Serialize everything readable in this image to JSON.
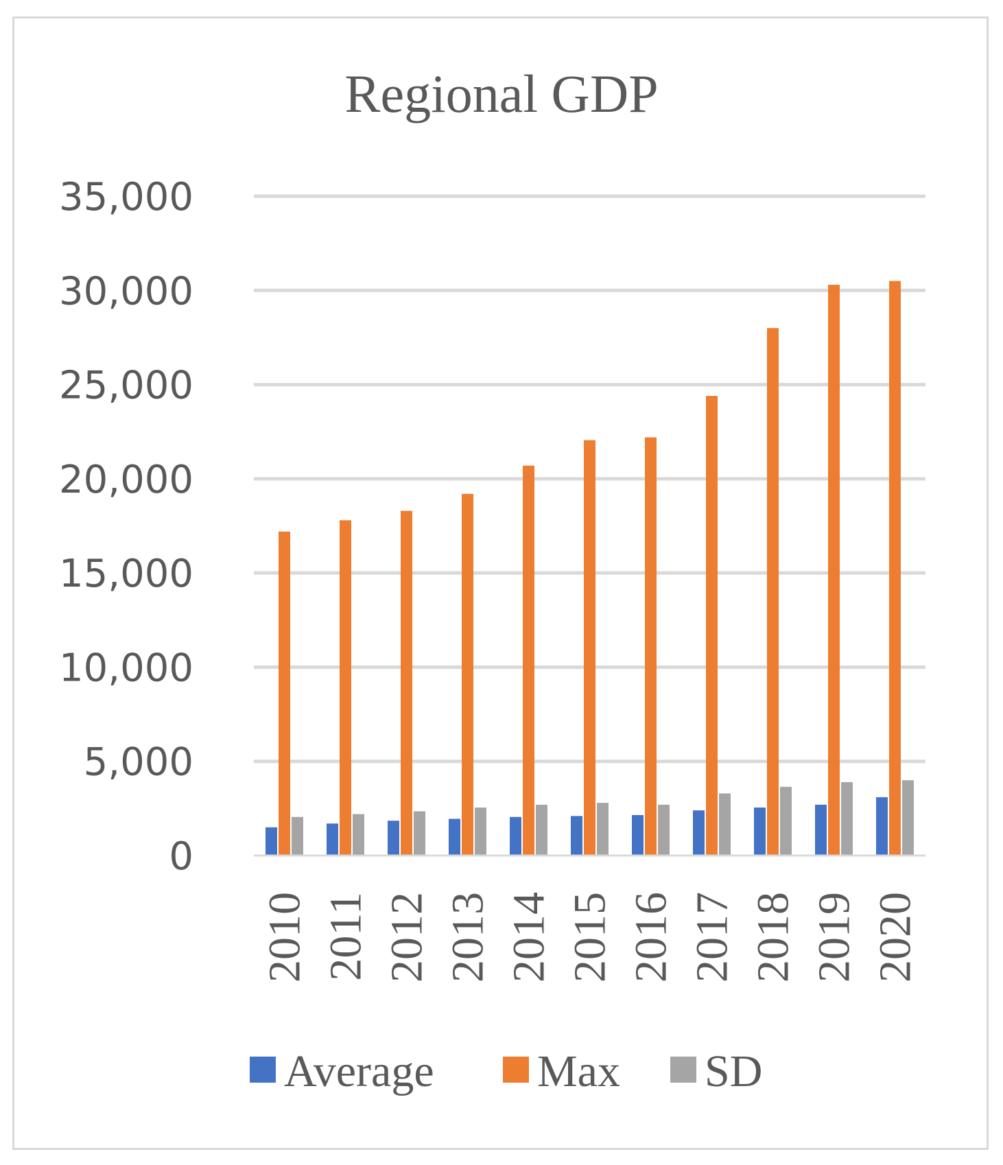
{
  "chart_data": {
    "type": "bar",
    "title": "Regional GDP",
    "xlabel": "",
    "ylabel": "",
    "ylim": [
      0,
      35000
    ],
    "yticks": [
      0,
      5000,
      10000,
      15000,
      20000,
      25000,
      30000,
      35000
    ],
    "ytick_labels": [
      "0",
      "5,000",
      "10,000",
      "15,000",
      "20,000",
      "25,000",
      "30,000",
      "35,000"
    ],
    "grid": true,
    "legend_position": "bottom",
    "categories": [
      "2010",
      "2011",
      "2012",
      "2013",
      "2014",
      "2015",
      "2016",
      "2017",
      "2018",
      "2019",
      "2020"
    ],
    "series": [
      {
        "name": "Average",
        "color": "#4472c4",
        "values": [
          1500,
          1700,
          1850,
          1950,
          2050,
          2100,
          2150,
          2400,
          2550,
          2700,
          3100
        ]
      },
      {
        "name": "Max",
        "color": "#ed7d31",
        "values": [
          17200,
          17800,
          18300,
          19200,
          20700,
          22050,
          22200,
          24400,
          28000,
          30300,
          30500
        ]
      },
      {
        "name": "SD",
        "color": "#a5a5a5",
        "values": [
          2050,
          2200,
          2350,
          2550,
          2700,
          2800,
          2700,
          3300,
          3650,
          3900,
          4000
        ]
      }
    ]
  }
}
